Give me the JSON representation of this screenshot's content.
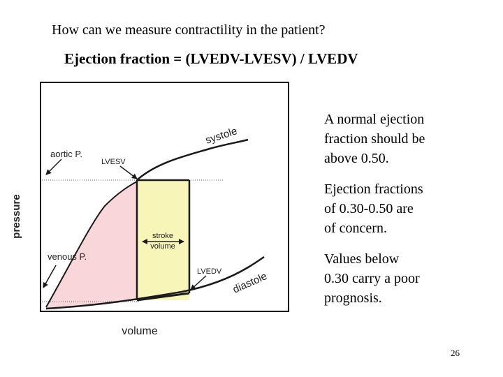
{
  "slide": {
    "heading": "How can we measure contractility in the patient?",
    "formula": "Ejection fraction  = (LVEDV-LVESV) / LVEDV",
    "notes": [
      [
        "A normal ejection",
        "fraction should be",
        "above 0.50."
      ],
      [
        "Ejection fractions",
        "of  0.30-0.50 are",
        "of concern."
      ],
      [
        "Values below",
        "0.30 carry a poor",
        "prognosis."
      ]
    ],
    "page_number": "26"
  },
  "diagram": {
    "axis_y": "pressure",
    "axis_x": "volume",
    "labels": {
      "systole": "systole",
      "diastole": "diastole",
      "aortic": "aortic P.",
      "lvesv": "LVESV",
      "venous": "venous P.",
      "lvedv": "LVEDV",
      "stroke_1": "stroke",
      "stroke_2": "volume"
    },
    "colors": {
      "ejection_fill": "#f9d6da",
      "stroke_volume_fill": "#f7f5b8",
      "line": "#1a1a1a"
    }
  }
}
